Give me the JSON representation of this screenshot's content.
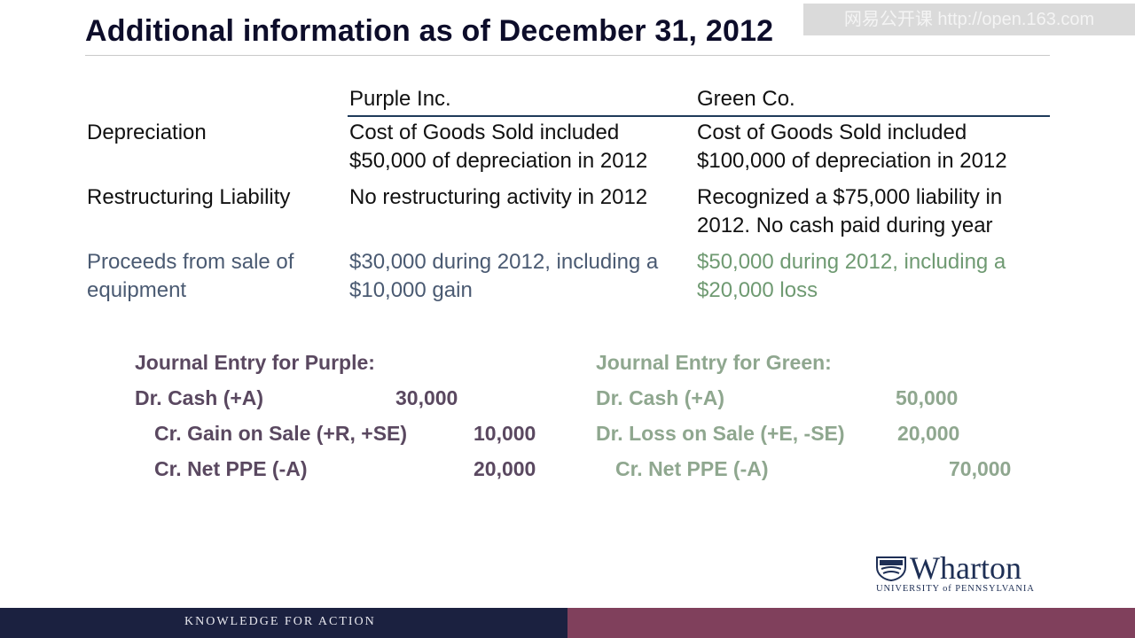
{
  "title": "Additional information as of December 31, 2012",
  "watermark": "网易公开课 http://open.163.com",
  "columns": {
    "purple": "Purple Inc.",
    "green": "Green Co."
  },
  "rows": {
    "depreciation": {
      "label": "Depreciation",
      "purple": [
        "Cost of Goods Sold included",
        "$50,000 of depreciation in 2012"
      ],
      "green": [
        "Cost of Goods Sold included",
        "$100,000 of depreciation in 2012"
      ]
    },
    "restructuring": {
      "label": "Restructuring Liability",
      "purple": [
        "No restructuring activity in 2012"
      ],
      "green": [
        "Recognized a $75,000 liability in",
        "2012.  No cash paid during year"
      ]
    },
    "proceeds": {
      "label": [
        "Proceeds from sale of",
        "equipment"
      ],
      "purple": [
        "$30,000 during 2012, including a",
        "$10,000 gain"
      ],
      "green": [
        "$50,000 during 2012, including a",
        "$20,000 loss"
      ]
    }
  },
  "journal_purple": {
    "heading": "Journal Entry for Purple:",
    "lines": [
      {
        "account": "Dr. Cash (+A)",
        "amount": "30,000"
      },
      {
        "account": "Cr. Gain on Sale (+R, +SE)",
        "amount": "10,000"
      },
      {
        "account": "Cr. Net PPE (-A)",
        "amount": "20,000"
      }
    ]
  },
  "journal_green": {
    "heading": "Journal Entry for Green:",
    "lines": [
      {
        "account": "Dr. Cash (+A)",
        "amount": "50,000"
      },
      {
        "account": "Dr. Loss on Sale (+E, -SE)",
        "amount": "20,000"
      },
      {
        "account": "Cr. Net PPE (-A)",
        "amount": "70,000"
      }
    ]
  },
  "logo": {
    "word": "Wharton",
    "sub": "UNIVERSITY of PENNSYLVANIA"
  },
  "footer": {
    "text": "KNOWLEDGE FOR ACTION"
  },
  "colors": {
    "title": "#0d0d2a",
    "footer_left": "#1b2140",
    "footer_right": "#80405c",
    "green_text": "#6f9a72"
  }
}
